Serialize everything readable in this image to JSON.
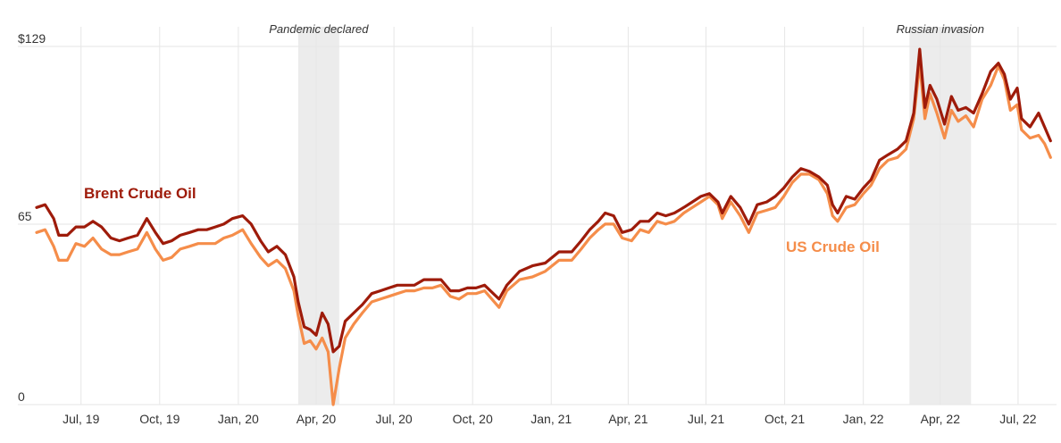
{
  "chart_data": {
    "type": "line",
    "x_axis": {
      "type": "date",
      "range": [
        "2019-05-09",
        "2022-08-15"
      ],
      "tick_labels": [
        "Jul, 19",
        "Oct, 19",
        "Jan, 20",
        "Apr, 20",
        "Jul, 20",
        "Oct, 20",
        "Jan, 21",
        "Apr, 21",
        "Jul, 21",
        "Oct, 21",
        "Jan, 22",
        "Apr, 22",
        "Jul, 22"
      ],
      "tick_dates": [
        "2019-07-01",
        "2019-10-01",
        "2020-01-01",
        "2020-04-01",
        "2020-07-01",
        "2020-10-01",
        "2021-01-01",
        "2021-04-01",
        "2021-07-01",
        "2021-10-01",
        "2022-01-01",
        "2022-04-01",
        "2022-07-01"
      ],
      "grid": true
    },
    "y_axis": {
      "range": [
        0,
        129
      ],
      "tick_values": [
        0,
        65,
        129
      ],
      "tick_labels": [
        "0",
        "65",
        "$129"
      ],
      "grid": true
    },
    "events": [
      {
        "label": "Pandemic declared",
        "start": "2020-03-11",
        "end": "2020-04-28"
      },
      {
        "label": "Russian invasion",
        "start": "2022-02-24",
        "end": "2022-05-07"
      }
    ],
    "series": [
      {
        "name": "Brent Crude Oil",
        "color": "#9e1b0a",
        "points": [
          [
            "2019-05-10",
            71
          ],
          [
            "2019-05-20",
            72
          ],
          [
            "2019-05-30",
            67
          ],
          [
            "2019-06-05",
            61
          ],
          [
            "2019-06-15",
            61
          ],
          [
            "2019-06-25",
            64
          ],
          [
            "2019-07-05",
            64
          ],
          [
            "2019-07-15",
            66
          ],
          [
            "2019-07-25",
            64
          ],
          [
            "2019-08-05",
            60
          ],
          [
            "2019-08-15",
            59
          ],
          [
            "2019-08-25",
            60
          ],
          [
            "2019-09-05",
            61
          ],
          [
            "2019-09-16",
            67
          ],
          [
            "2019-09-26",
            62
          ],
          [
            "2019-10-05",
            58
          ],
          [
            "2019-10-15",
            59
          ],
          [
            "2019-10-25",
            61
          ],
          [
            "2019-11-05",
            62
          ],
          [
            "2019-11-15",
            63
          ],
          [
            "2019-11-25",
            63
          ],
          [
            "2019-12-05",
            64
          ],
          [
            "2019-12-15",
            65
          ],
          [
            "2019-12-25",
            67
          ],
          [
            "2020-01-06",
            68
          ],
          [
            "2020-01-16",
            65
          ],
          [
            "2020-01-27",
            59
          ],
          [
            "2020-02-05",
            55
          ],
          [
            "2020-02-15",
            57
          ],
          [
            "2020-02-25",
            54
          ],
          [
            "2020-03-06",
            46
          ],
          [
            "2020-03-11",
            37
          ],
          [
            "2020-03-18",
            28
          ],
          [
            "2020-03-25",
            27
          ],
          [
            "2020-04-01",
            25
          ],
          [
            "2020-04-08",
            33
          ],
          [
            "2020-04-15",
            29
          ],
          [
            "2020-04-21",
            19
          ],
          [
            "2020-04-28",
            21
          ],
          [
            "2020-05-05",
            30
          ],
          [
            "2020-05-15",
            33
          ],
          [
            "2020-05-25",
            36
          ],
          [
            "2020-06-05",
            40
          ],
          [
            "2020-06-15",
            41
          ],
          [
            "2020-06-25",
            42
          ],
          [
            "2020-07-05",
            43
          ],
          [
            "2020-07-15",
            43
          ],
          [
            "2020-07-25",
            43
          ],
          [
            "2020-08-05",
            45
          ],
          [
            "2020-08-15",
            45
          ],
          [
            "2020-08-25",
            45
          ],
          [
            "2020-09-05",
            41
          ],
          [
            "2020-09-15",
            41
          ],
          [
            "2020-09-25",
            42
          ],
          [
            "2020-10-05",
            42
          ],
          [
            "2020-10-15",
            43
          ],
          [
            "2020-11-01",
            38
          ],
          [
            "2020-11-10",
            43
          ],
          [
            "2020-11-25",
            48
          ],
          [
            "2020-12-10",
            50
          ],
          [
            "2020-12-25",
            51
          ],
          [
            "2021-01-10",
            55
          ],
          [
            "2021-01-25",
            55
          ],
          [
            "2021-02-05",
            59
          ],
          [
            "2021-02-15",
            63
          ],
          [
            "2021-02-25",
            66
          ],
          [
            "2021-03-05",
            69
          ],
          [
            "2021-03-15",
            68
          ],
          [
            "2021-03-25",
            62
          ],
          [
            "2021-04-05",
            63
          ],
          [
            "2021-04-15",
            66
          ],
          [
            "2021-04-25",
            66
          ],
          [
            "2021-05-05",
            69
          ],
          [
            "2021-05-15",
            68
          ],
          [
            "2021-05-25",
            69
          ],
          [
            "2021-06-05",
            71
          ],
          [
            "2021-06-15",
            73
          ],
          [
            "2021-06-25",
            75
          ],
          [
            "2021-07-05",
            76
          ],
          [
            "2021-07-15",
            73
          ],
          [
            "2021-07-20",
            69
          ],
          [
            "2021-07-30",
            75
          ],
          [
            "2021-08-10",
            71
          ],
          [
            "2021-08-20",
            65
          ],
          [
            "2021-08-30",
            72
          ],
          [
            "2021-09-10",
            73
          ],
          [
            "2021-09-20",
            75
          ],
          [
            "2021-09-30",
            78
          ],
          [
            "2021-10-10",
            82
          ],
          [
            "2021-10-20",
            85
          ],
          [
            "2021-10-30",
            84
          ],
          [
            "2021-11-10",
            82
          ],
          [
            "2021-11-20",
            79
          ],
          [
            "2021-11-26",
            72
          ],
          [
            "2021-12-02",
            69
          ],
          [
            "2021-12-12",
            75
          ],
          [
            "2021-12-22",
            74
          ],
          [
            "2022-01-01",
            78
          ],
          [
            "2022-01-10",
            81
          ],
          [
            "2022-01-20",
            88
          ],
          [
            "2022-01-30",
            90
          ],
          [
            "2022-02-10",
            92
          ],
          [
            "2022-02-20",
            95
          ],
          [
            "2022-03-01",
            105
          ],
          [
            "2022-03-08",
            128
          ],
          [
            "2022-03-14",
            107
          ],
          [
            "2022-03-20",
            115
          ],
          [
            "2022-03-28",
            110
          ],
          [
            "2022-04-06",
            101
          ],
          [
            "2022-04-14",
            111
          ],
          [
            "2022-04-22",
            106
          ],
          [
            "2022-05-01",
            107
          ],
          [
            "2022-05-10",
            105
          ],
          [
            "2022-05-20",
            112
          ],
          [
            "2022-05-30",
            120
          ],
          [
            "2022-06-08",
            123
          ],
          [
            "2022-06-15",
            119
          ],
          [
            "2022-06-22",
            110
          ],
          [
            "2022-06-30",
            114
          ],
          [
            "2022-07-05",
            103
          ],
          [
            "2022-07-15",
            100
          ],
          [
            "2022-07-25",
            105
          ],
          [
            "2022-08-01",
            100
          ],
          [
            "2022-08-08",
            95
          ]
        ]
      },
      {
        "name": "US Crude Oil",
        "color": "#f58d4a",
        "points": [
          [
            "2019-05-10",
            62
          ],
          [
            "2019-05-20",
            63
          ],
          [
            "2019-05-30",
            57
          ],
          [
            "2019-06-05",
            52
          ],
          [
            "2019-06-15",
            52
          ],
          [
            "2019-06-25",
            58
          ],
          [
            "2019-07-05",
            57
          ],
          [
            "2019-07-15",
            60
          ],
          [
            "2019-07-25",
            56
          ],
          [
            "2019-08-05",
            54
          ],
          [
            "2019-08-15",
            54
          ],
          [
            "2019-08-25",
            55
          ],
          [
            "2019-09-05",
            56
          ],
          [
            "2019-09-16",
            62
          ],
          [
            "2019-09-26",
            56
          ],
          [
            "2019-10-05",
            52
          ],
          [
            "2019-10-15",
            53
          ],
          [
            "2019-10-25",
            56
          ],
          [
            "2019-11-05",
            57
          ],
          [
            "2019-11-15",
            58
          ],
          [
            "2019-11-25",
            58
          ],
          [
            "2019-12-05",
            58
          ],
          [
            "2019-12-15",
            60
          ],
          [
            "2019-12-25",
            61
          ],
          [
            "2020-01-06",
            63
          ],
          [
            "2020-01-16",
            58
          ],
          [
            "2020-01-27",
            53
          ],
          [
            "2020-02-05",
            50
          ],
          [
            "2020-02-15",
            52
          ],
          [
            "2020-02-25",
            49
          ],
          [
            "2020-03-06",
            41
          ],
          [
            "2020-03-11",
            32
          ],
          [
            "2020-03-18",
            22
          ],
          [
            "2020-03-25",
            23
          ],
          [
            "2020-04-01",
            20
          ],
          [
            "2020-04-08",
            24
          ],
          [
            "2020-04-15",
            19
          ],
          [
            "2020-04-21",
            0
          ],
          [
            "2020-04-28",
            13
          ],
          [
            "2020-05-05",
            24
          ],
          [
            "2020-05-15",
            29
          ],
          [
            "2020-05-25",
            33
          ],
          [
            "2020-06-05",
            37
          ],
          [
            "2020-06-15",
            38
          ],
          [
            "2020-06-25",
            39
          ],
          [
            "2020-07-05",
            40
          ],
          [
            "2020-07-15",
            41
          ],
          [
            "2020-07-25",
            41
          ],
          [
            "2020-08-05",
            42
          ],
          [
            "2020-08-15",
            42
          ],
          [
            "2020-08-25",
            43
          ],
          [
            "2020-09-05",
            39
          ],
          [
            "2020-09-15",
            38
          ],
          [
            "2020-09-25",
            40
          ],
          [
            "2020-10-05",
            40
          ],
          [
            "2020-10-15",
            41
          ],
          [
            "2020-11-01",
            35
          ],
          [
            "2020-11-10",
            41
          ],
          [
            "2020-11-25",
            45
          ],
          [
            "2020-12-10",
            46
          ],
          [
            "2020-12-25",
            48
          ],
          [
            "2021-01-10",
            52
          ],
          [
            "2021-01-25",
            52
          ],
          [
            "2021-02-05",
            56
          ],
          [
            "2021-02-15",
            60
          ],
          [
            "2021-02-25",
            63
          ],
          [
            "2021-03-05",
            65
          ],
          [
            "2021-03-15",
            65
          ],
          [
            "2021-03-25",
            60
          ],
          [
            "2021-04-05",
            59
          ],
          [
            "2021-04-15",
            63
          ],
          [
            "2021-04-25",
            62
          ],
          [
            "2021-05-05",
            66
          ],
          [
            "2021-05-15",
            65
          ],
          [
            "2021-05-25",
            66
          ],
          [
            "2021-06-05",
            69
          ],
          [
            "2021-06-15",
            71
          ],
          [
            "2021-06-25",
            73
          ],
          [
            "2021-07-05",
            75
          ],
          [
            "2021-07-15",
            72
          ],
          [
            "2021-07-20",
            67
          ],
          [
            "2021-07-30",
            73
          ],
          [
            "2021-08-10",
            68
          ],
          [
            "2021-08-20",
            62
          ],
          [
            "2021-08-30",
            69
          ],
          [
            "2021-09-10",
            70
          ],
          [
            "2021-09-20",
            71
          ],
          [
            "2021-09-30",
            75
          ],
          [
            "2021-10-10",
            80
          ],
          [
            "2021-10-20",
            83
          ],
          [
            "2021-10-30",
            83
          ],
          [
            "2021-11-10",
            81
          ],
          [
            "2021-11-20",
            76
          ],
          [
            "2021-11-26",
            68
          ],
          [
            "2021-12-02",
            66
          ],
          [
            "2021-12-12",
            71
          ],
          [
            "2021-12-22",
            72
          ],
          [
            "2022-01-01",
            76
          ],
          [
            "2022-01-10",
            79
          ],
          [
            "2022-01-20",
            85
          ],
          [
            "2022-01-30",
            88
          ],
          [
            "2022-02-10",
            89
          ],
          [
            "2022-02-20",
            92
          ],
          [
            "2022-03-01",
            103
          ],
          [
            "2022-03-08",
            123
          ],
          [
            "2022-03-14",
            103
          ],
          [
            "2022-03-20",
            112
          ],
          [
            "2022-03-28",
            105
          ],
          [
            "2022-04-06",
            96
          ],
          [
            "2022-04-14",
            106
          ],
          [
            "2022-04-22",
            102
          ],
          [
            "2022-05-01",
            104
          ],
          [
            "2022-05-10",
            100
          ],
          [
            "2022-05-20",
            110
          ],
          [
            "2022-05-30",
            115
          ],
          [
            "2022-06-08",
            122
          ],
          [
            "2022-06-15",
            117
          ],
          [
            "2022-06-22",
            106
          ],
          [
            "2022-06-30",
            108
          ],
          [
            "2022-07-05",
            99
          ],
          [
            "2022-07-15",
            96
          ],
          [
            "2022-07-25",
            97
          ],
          [
            "2022-08-01",
            94
          ],
          [
            "2022-08-08",
            89
          ]
        ]
      }
    ]
  }
}
